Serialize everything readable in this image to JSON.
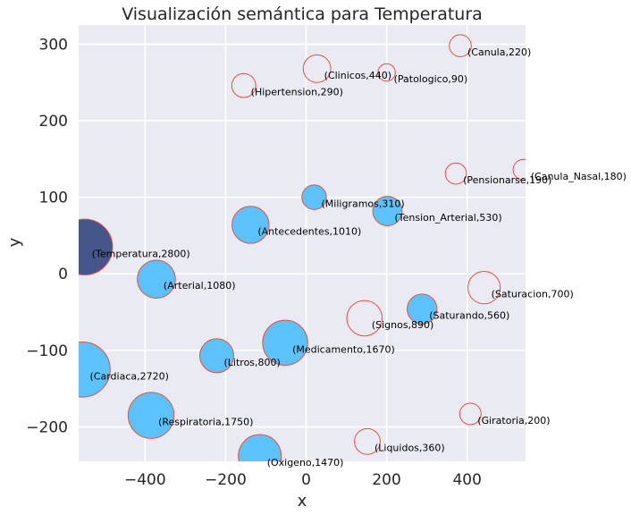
{
  "chart_data": {
    "type": "scatter",
    "title": "Visualización semántica para Temperatura",
    "xlabel": "x",
    "ylabel": "y",
    "xlim": [
      -565,
      545
    ],
    "ylim": [
      -245,
      325
    ],
    "xticks": [
      -400,
      -200,
      0,
      200,
      400
    ],
    "xtick_labels": [
      "−400",
      "−200",
      "0",
      "200",
      "400"
    ],
    "yticks": [
      -200,
      -100,
      0,
      100,
      200,
      300
    ],
    "ytick_labels": [
      "−200",
      "−100",
      "0",
      "100",
      "200",
      "300"
    ],
    "grid": true,
    "colors": {
      "background": "#eaeaf2",
      "grid": "#ffffff",
      "edge": "#e8503e",
      "filled": "#5bc2fb",
      "highlight": "#44568a",
      "hollow": "#eaeaf2"
    },
    "points": [
      {
        "word": "Temperatura",
        "value": 2800,
        "x": -550,
        "y": 35,
        "style": "highlight",
        "label": "(Temperatura,2800)"
      },
      {
        "word": "Cardiaca",
        "value": 2720,
        "x": -555,
        "y": -125,
        "style": "filled",
        "label": "(Cardiaca,2720)"
      },
      {
        "word": "Respiratoria",
        "value": 1750,
        "x": -385,
        "y": -185,
        "style": "filled",
        "label": "(Respiratoria,1750)"
      },
      {
        "word": "Medicamento",
        "value": 1670,
        "x": -52,
        "y": -90,
        "style": "filled",
        "label": "(Medicamento,1670)"
      },
      {
        "word": "Oxigeno",
        "value": 1470,
        "x": -115,
        "y": -238,
        "style": "filled",
        "label": "(Oxigeno,1470)"
      },
      {
        "word": "Arterial",
        "value": 1080,
        "x": -372,
        "y": -7,
        "style": "filled",
        "label": "(Arterial,1080)"
      },
      {
        "word": "Antecedentes",
        "value": 1010,
        "x": -138,
        "y": 64,
        "style": "filled",
        "label": "(Antecedentes,1010)"
      },
      {
        "word": "Litros",
        "value": 800,
        "x": -222,
        "y": -107,
        "style": "filled",
        "label": "(Litros,800)"
      },
      {
        "word": "Saturando",
        "value": 560,
        "x": 288,
        "y": -46,
        "style": "filled",
        "label": "(Saturando,560)"
      },
      {
        "word": "Tension_Arterial",
        "value": 530,
        "x": 202,
        "y": 82,
        "style": "filled",
        "label": "(Tension_Arterial,530)"
      },
      {
        "word": "Miligramos",
        "value": 310,
        "x": 20,
        "y": 100,
        "style": "filled",
        "label": "(Miligramos,310)"
      },
      {
        "word": "Signos",
        "value": 890,
        "x": 145,
        "y": -58,
        "style": "hollow",
        "label": "(Signos,890)"
      },
      {
        "word": "Saturacion",
        "value": 700,
        "x": 442,
        "y": -18,
        "style": "hollow",
        "label": "(Saturacion,700)"
      },
      {
        "word": "Clinicos",
        "value": 440,
        "x": 27,
        "y": 268,
        "style": "hollow",
        "label": "(Clinicos,440)"
      },
      {
        "word": "Liquidos",
        "value": 360,
        "x": 152,
        "y": -219,
        "style": "hollow",
        "label": "(Liquidos,360)"
      },
      {
        "word": "Hipertension",
        "value": 290,
        "x": -155,
        "y": 246,
        "style": "hollow",
        "label": "(Hipertension,290)"
      },
      {
        "word": "Canula",
        "value": 220,
        "x": 383,
        "y": 298,
        "style": "hollow",
        "label": "(Canula,220)"
      },
      {
        "word": "Giratoria",
        "value": 200,
        "x": 408,
        "y": -183,
        "style": "hollow",
        "label": "(Giratoria,200)"
      },
      {
        "word": "Pensionarse",
        "value": 190,
        "x": 372,
        "y": 131,
        "style": "hollow",
        "label": "(Pensionarse,190)"
      },
      {
        "word": "Canula_Nasal",
        "value": 180,
        "x": 540,
        "y": 136,
        "style": "hollow",
        "label": "(Canula_Nasal,180)"
      },
      {
        "word": "Patologico",
        "value": 90,
        "x": 200,
        "y": 263,
        "style": "hollow",
        "label": "(Patologico,90)"
      }
    ]
  }
}
